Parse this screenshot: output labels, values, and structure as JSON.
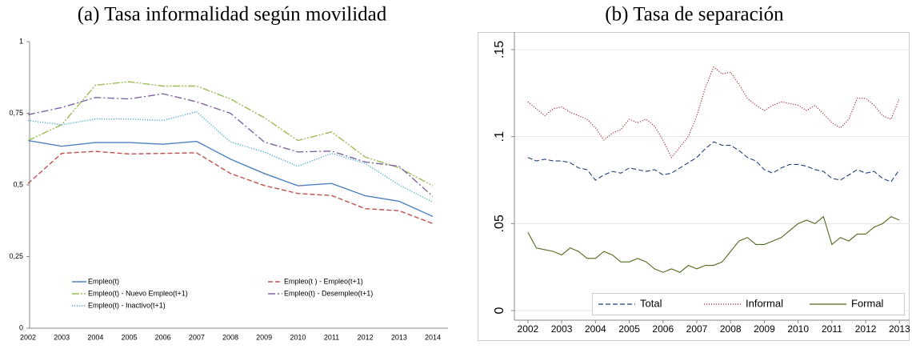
{
  "chart_data": [
    {
      "type": "line",
      "title": "(a) Tasa informalidad según movilidad",
      "categories": [
        "2002",
        "2003",
        "2004",
        "2005",
        "2006",
        "2007",
        "2008",
        "2009",
        "2010",
        "2011",
        "2012",
        "2013",
        "2014"
      ],
      "ylim": [
        0,
        1
      ],
      "yticks": [
        0,
        {
          "value": 0.25,
          "label": "0,25"
        },
        {
          "value": 0.5,
          "label": "0,5"
        },
        {
          "value": 0.75,
          "label": "0,75"
        },
        1
      ],
      "grid": false,
      "legend": "lower left",
      "series": [
        {
          "name": "Empleo(t)",
          "color": "#4f81bd",
          "style": "solid",
          "values": [
            0.655,
            0.635,
            0.648,
            0.648,
            0.642,
            0.652,
            0.59,
            0.54,
            0.497,
            0.505,
            0.462,
            0.443,
            0.39
          ]
        },
        {
          "name": "Empleo(t ) - Empleo(t+1)",
          "color": "#c0504d",
          "style": "dashed",
          "values": [
            0.505,
            0.61,
            0.617,
            0.608,
            0.61,
            0.612,
            0.54,
            0.498,
            0.47,
            0.463,
            0.417,
            0.41,
            0.365
          ]
        },
        {
          "name": "Empleo(t) - Nuevo Empleo(t+1)",
          "color": "#9bbb59",
          "style": "dashdotdot",
          "values": [
            0.655,
            0.71,
            0.848,
            0.86,
            0.845,
            0.845,
            0.8,
            0.735,
            0.655,
            0.685,
            0.597,
            0.56,
            0.497
          ]
        },
        {
          "name": "Empleo(t) - Desempleo(t+1)",
          "color": "#8064a2",
          "style": "dashdot",
          "values": [
            0.745,
            0.77,
            0.805,
            0.8,
            0.818,
            0.79,
            0.75,
            0.65,
            0.615,
            0.618,
            0.58,
            0.565,
            0.46
          ]
        },
        {
          "name": "Empleo(t) - Inactivo(t+1)",
          "color": "#4bacc6",
          "style": "dotted",
          "values": [
            0.725,
            0.71,
            0.73,
            0.73,
            0.725,
            0.755,
            0.65,
            0.615,
            0.565,
            0.61,
            0.575,
            0.5,
            0.44
          ]
        }
      ]
    },
    {
      "type": "line",
      "title": "(b) Tasa de separación",
      "x": [
        2002,
        2002.25,
        2002.5,
        2002.75,
        2003,
        2003.25,
        2003.5,
        2003.75,
        2004,
        2004.25,
        2004.5,
        2004.75,
        2005,
        2005.25,
        2005.5,
        2005.75,
        2006,
        2006.25,
        2006.5,
        2006.75,
        2007,
        2007.25,
        2007.5,
        2007.75,
        2008,
        2008.25,
        2008.5,
        2008.75,
        2009,
        2009.25,
        2009.5,
        2009.75,
        2010,
        2010.25,
        2010.5,
        2010.75,
        2011,
        2011.25,
        2011.5,
        2011.75,
        2012,
        2012.25,
        2012.5,
        2012.75,
        2013
      ],
      "xlim": [
        2001.6,
        2013.3
      ],
      "xticks": [
        2002,
        2003,
        2004,
        2005,
        2006,
        2007,
        2008,
        2009,
        2010,
        2011,
        2012,
        2013
      ],
      "ylim": [
        -0.0055,
        0.1601
      ],
      "yticks": [
        0,
        {
          "value": 0.05,
          "label": ".05"
        },
        {
          "value": 0.1,
          "label": ".1"
        },
        {
          "value": 0.15,
          "label": ".15"
        }
      ],
      "grid": true,
      "legend": "bottom",
      "series": [
        {
          "name": "Total",
          "color": "#1f3f7a",
          "style": "dashed",
          "values": [
            0.088,
            0.086,
            0.087,
            0.086,
            0.086,
            0.085,
            0.082,
            0.081,
            0.075,
            0.078,
            0.08,
            0.079,
            0.082,
            0.081,
            0.08,
            0.081,
            0.078,
            0.079,
            0.082,
            0.085,
            0.088,
            0.093,
            0.097,
            0.095,
            0.095,
            0.092,
            0.088,
            0.086,
            0.081,
            0.079,
            0.082,
            0.084,
            0.084,
            0.083,
            0.081,
            0.08,
            0.076,
            0.075,
            0.078,
            0.081,
            0.079,
            0.08,
            0.076,
            0.074,
            0.081
          ]
        },
        {
          "name": "Informal",
          "color": "#a0202a",
          "style": "dotted",
          "values": [
            0.12,
            0.116,
            0.112,
            0.116,
            0.117,
            0.114,
            0.112,
            0.11,
            0.105,
            0.098,
            0.102,
            0.104,
            0.11,
            0.108,
            0.11,
            0.106,
            0.098,
            0.088,
            0.094,
            0.1,
            0.112,
            0.128,
            0.14,
            0.136,
            0.137,
            0.13,
            0.122,
            0.118,
            0.115,
            0.118,
            0.12,
            0.119,
            0.118,
            0.115,
            0.118,
            0.113,
            0.108,
            0.105,
            0.11,
            0.122,
            0.122,
            0.118,
            0.112,
            0.11,
            0.122
          ]
        },
        {
          "name": "Formal",
          "color": "#4f6a1e",
          "style": "solid",
          "values": [
            0.045,
            0.036,
            0.035,
            0.034,
            0.032,
            0.036,
            0.034,
            0.03,
            0.03,
            0.034,
            0.032,
            0.028,
            0.028,
            0.03,
            0.028,
            0.024,
            0.022,
            0.024,
            0.022,
            0.026,
            0.024,
            0.026,
            0.026,
            0.028,
            0.034,
            0.04,
            0.042,
            0.038,
            0.038,
            0.04,
            0.042,
            0.046,
            0.05,
            0.052,
            0.05,
            0.054,
            0.038,
            0.042,
            0.04,
            0.044,
            0.044,
            0.048,
            0.05,
            0.054,
            0.052
          ]
        }
      ]
    }
  ]
}
